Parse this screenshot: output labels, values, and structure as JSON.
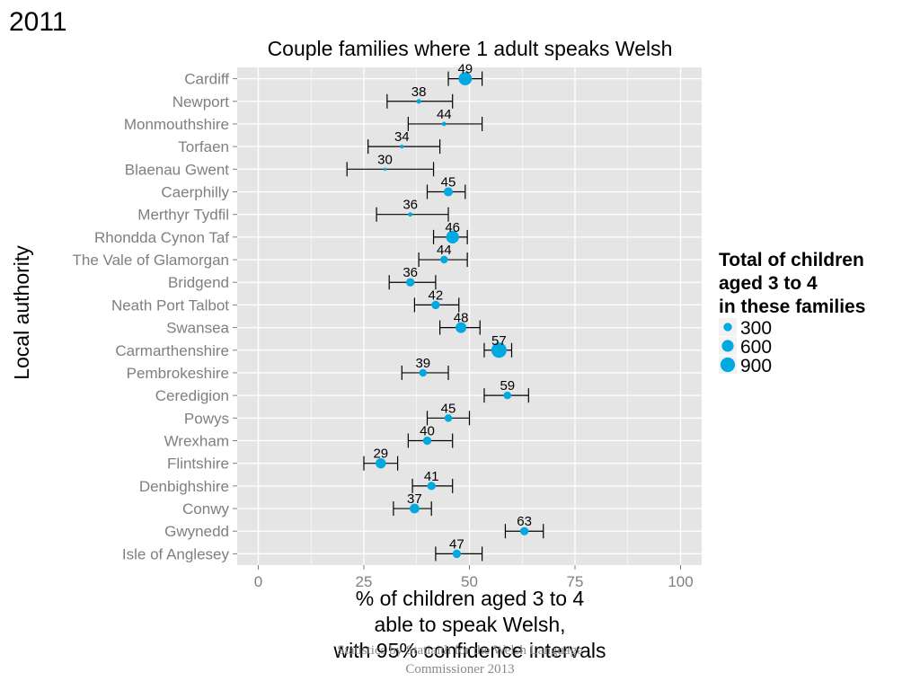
{
  "year_label": "2011",
  "credit": "Statistics by Statiaith for the Welsh Language Commissioner 2013",
  "colors": {
    "point": "#00a9e0",
    "panel": "#e5e5e5",
    "grid": "#ffffff",
    "whisker": "#000000"
  },
  "chart_data": {
    "type": "scatter",
    "title": "Couple families where 1 adult speaks Welsh",
    "xlabel": [
      "% of children aged 3 to 4",
      "able to speak Welsh,",
      "with 95% confidence intervals"
    ],
    "ylabel": "Local authority",
    "xlim": [
      -5,
      105
    ],
    "xticks": [
      0,
      25,
      50,
      75,
      100
    ],
    "grid": true,
    "legend": {
      "title": [
        "Total of children",
        "aged 3 to 4",
        "in these families"
      ],
      "position": "right",
      "sizes": [
        300,
        600,
        900
      ]
    },
    "categories": [
      "Cardiff",
      "Newport",
      "Monmouthshire",
      "Torfaen",
      "Blaenau Gwent",
      "Caerphilly",
      "Merthyr Tydfil",
      "Rhondda Cynon Taf",
      "The Vale of Glamorgan",
      "Bridgend",
      "Neath Port Talbot",
      "Swansea",
      "Carmarthenshire",
      "Pembrokeshire",
      "Ceredigion",
      "Powys",
      "Wrexham",
      "Flintshire",
      "Denbighshire",
      "Conwy",
      "Gwynedd",
      "Isle of Anglesey"
    ],
    "values": [
      49,
      38,
      44,
      34,
      30,
      45,
      36,
      46,
      44,
      36,
      42,
      48,
      57,
      39,
      59,
      45,
      40,
      29,
      41,
      37,
      63,
      47
    ],
    "labels": [
      "49",
      "38",
      "44",
      "34",
      "30",
      "45",
      "36",
      "46",
      "44",
      "36",
      "42",
      "48",
      "57",
      "39",
      "59",
      "45",
      "40",
      "29",
      "41",
      "37",
      "63",
      "47"
    ],
    "ci_low": [
      45,
      30.5,
      35.5,
      26,
      21,
      40,
      28,
      41.5,
      38,
      31,
      37,
      43,
      53.5,
      34,
      53.5,
      40,
      35.5,
      25,
      36.5,
      32,
      58.5,
      42
    ],
    "ci_high": [
      53,
      46,
      53,
      43,
      41.5,
      49,
      45,
      49.5,
      49.5,
      42,
      47.5,
      52.5,
      60,
      45,
      64,
      50,
      46,
      33,
      46,
      41,
      67.5,
      53
    ],
    "totals": [
      750,
      100,
      80,
      60,
      40,
      350,
      80,
      700,
      250,
      300,
      300,
      500,
      1000,
      250,
      250,
      250,
      300,
      450,
      300,
      400,
      300,
      300
    ]
  }
}
